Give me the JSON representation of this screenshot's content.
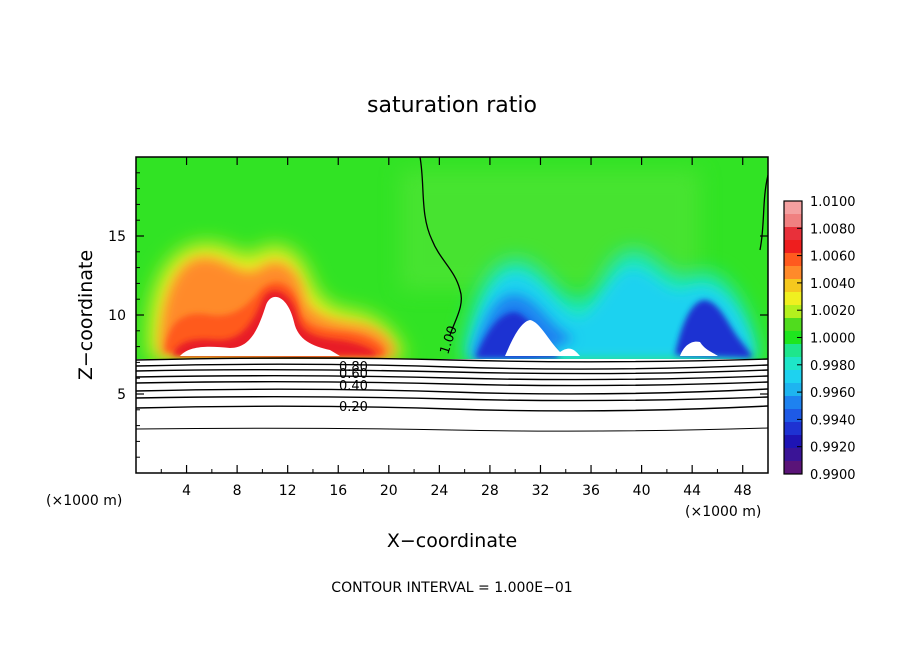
{
  "chart_data": {
    "type": "heatmap",
    "title": "saturation ratio",
    "xlabel": "X−coordinate",
    "ylabel": "Z−coordinate",
    "x_unit_left": "(×1000 m)",
    "x_unit_right": "(×1000 m)",
    "xlim": [
      0,
      50
    ],
    "ylim": [
      0,
      20
    ],
    "x_ticks": [
      4,
      8,
      12,
      16,
      20,
      24,
      28,
      32,
      36,
      40,
      44,
      48
    ],
    "y_ticks": [
      5,
      10,
      15
    ],
    "contour_labels": [
      "1.00",
      "0.80",
      "0.60",
      "0.40",
      "0.20"
    ],
    "contour_interval_text": "CONTOUR INTERVAL = 1.000E−01",
    "colorbar": {
      "levels": [
        "1.0100",
        "1.0080",
        "1.0060",
        "1.0040",
        "1.0020",
        "1.0000",
        "0.9980",
        "0.9960",
        "0.9940",
        "0.9920",
        "0.9900"
      ],
      "colors": [
        "#f4a0a0",
        "#f08080",
        "#e8303a",
        "#ee1e1e",
        "#ff5a1e",
        "#ff8a2a",
        "#f5c81e",
        "#f0f020",
        "#b4f01e",
        "#50dc1e",
        "#1ee61e",
        "#1ee68c",
        "#1ee6c8",
        "#1ed2f0",
        "#1eb4f0",
        "#1e82f0",
        "#1e5ae6",
        "#1e32d2",
        "#1e14b4",
        "#3a1496",
        "#5a1478"
      ]
    },
    "background_color": "#31e324"
  }
}
